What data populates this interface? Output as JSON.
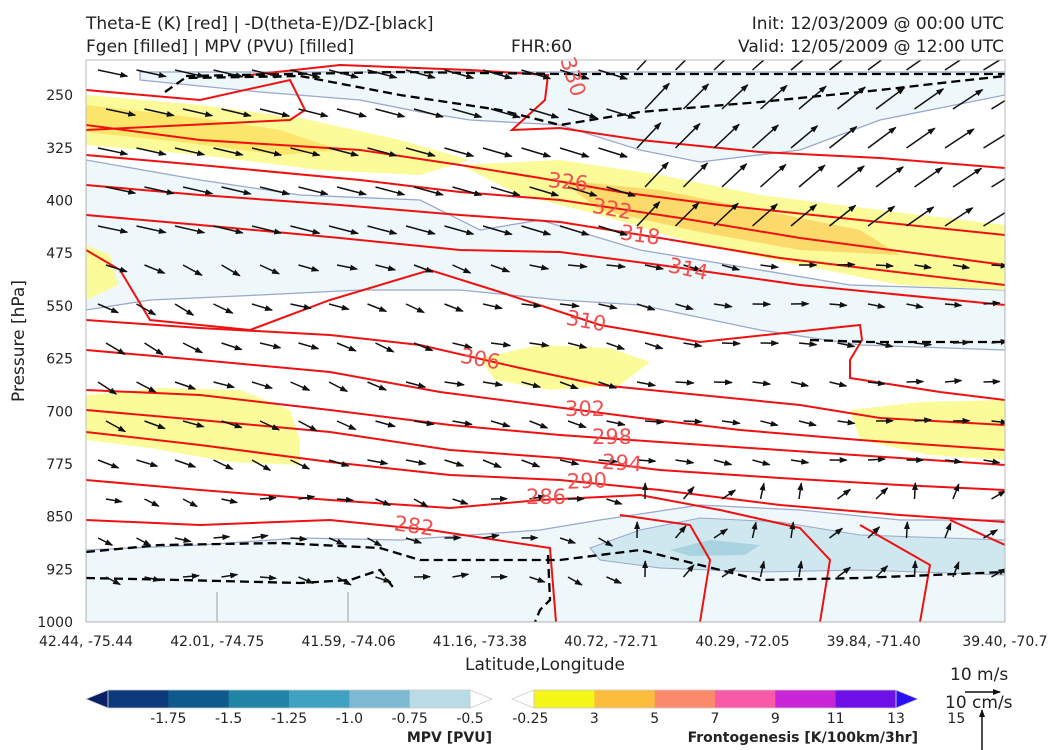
{
  "header": {
    "title_line1": "Theta-E (K) [red] | -D(theta-E)/DZ-[black]",
    "title_line2": "Fgen [filled] | MPV (PVU) [filled]",
    "fhr": "FHR:60",
    "init": "Init: 12/03/2009 @ 00:00 UTC",
    "valid": "Valid: 12/05/2009 @ 12:00 UTC"
  },
  "chart_data": {
    "type": "contour",
    "xlabel": "Latitude,Longitude",
    "ylabel": "Pressure [hPa]",
    "x_ticks": [
      "42.44, -75.44",
      "42.01, -74.75",
      "41.59, -74.06",
      "41.16, -73.38",
      "40.72, -72.71",
      "40.29, -72.05",
      "39.84, -71.40",
      "39.40, -70.7"
    ],
    "y_ticks": [
      250,
      325,
      400,
      475,
      550,
      625,
      700,
      775,
      850,
      925,
      1000
    ],
    "ylim": [
      1000,
      200
    ],
    "theta_e_contours": [
      {
        "level": 330,
        "label": "330"
      },
      {
        "level": 326,
        "label": "326"
      },
      {
        "level": 322,
        "label": "322"
      },
      {
        "level": 318,
        "label": "318"
      },
      {
        "level": 314,
        "label": "314"
      },
      {
        "level": 310,
        "label": "310"
      },
      {
        "level": 306,
        "label": "306"
      },
      {
        "level": 302,
        "label": "302"
      },
      {
        "level": 298,
        "label": "298"
      },
      {
        "level": 294,
        "label": "294"
      },
      {
        "level": 290,
        "label": "290"
      },
      {
        "level": 286,
        "label": "286"
      },
      {
        "level": 282,
        "label": "282"
      }
    ],
    "colors": {
      "theta_e": "#ee1111",
      "theta_e_label": "#f05050",
      "dtheta_dz": "#000000",
      "mpv_outline": "#9aa8cc"
    }
  },
  "mpv_colorbar": {
    "title": "MPV [PVU]",
    "labels": [
      "-1.75",
      "-1.5",
      "-1.25",
      "-1.0",
      "-0.75",
      "-0.5",
      "-0.25"
    ],
    "colors": [
      "#0b1f66",
      "#0d3a7a",
      "#0f5a8c",
      "#1f84a6",
      "#3fa2c0",
      "#7db9d2",
      "#b9dbe6",
      "#ffffff"
    ]
  },
  "fgen_colorbar": {
    "title": "Frontogenesis [K/100km/3hr]",
    "labels": [
      "3",
      "5",
      "7",
      "9",
      "11",
      "13",
      "15"
    ],
    "colors": [
      "#ffffff",
      "#f5f518",
      "#fdbd3c",
      "#fb8a6a",
      "#f95aa8",
      "#c825d6",
      "#7010e8",
      "#2a10f5"
    ]
  },
  "vector_reference": {
    "label1": "10 m/s",
    "label2": "10 cm/s"
  }
}
